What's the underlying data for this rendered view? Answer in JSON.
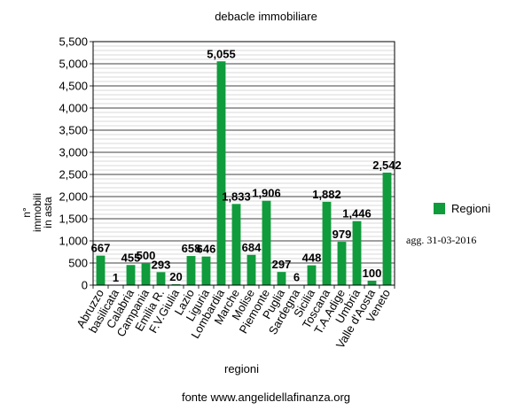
{
  "chart_data": {
    "type": "bar",
    "title": "debacle immobiliare",
    "xlabel": "regioni",
    "ylabel_lines": [
      "n°",
      "immobili",
      "in asta"
    ],
    "categories": [
      "Abruzzo",
      "basilicata",
      "Calabria",
      "Campania",
      "Emilia R.",
      "F.V.Giulia",
      "Lazio",
      "Liguria",
      "Lombardia",
      "Marche",
      "Molise",
      "Piemonte",
      "Puglia",
      "Sardegna",
      "Sicilia",
      "Toscana",
      "T.A.Adige",
      "Umbria",
      "Valle d'Aosta",
      "Veneto"
    ],
    "series": [
      {
        "name": "Regioni",
        "values": [
          667,
          1,
          455,
          500,
          293,
          20,
          658,
          646,
          5055,
          1833,
          684,
          1906,
          297,
          6,
          448,
          1882,
          979,
          1446,
          100,
          2542
        ],
        "labels": [
          "667",
          "1",
          "455",
          "500",
          "293",
          "20",
          "658",
          "646",
          "5,055",
          "1,833",
          "684",
          "1,906",
          "297",
          "6",
          "448",
          "1,882",
          "979",
          "1,446",
          "100",
          "2,542"
        ]
      }
    ],
    "ylim": [
      0,
      5500
    ],
    "yticks": [
      0,
      500,
      1000,
      1500,
      2000,
      2500,
      3000,
      3500,
      4000,
      4500,
      5000,
      5500
    ],
    "ytick_labels": [
      "0",
      "500",
      "1,000",
      "1,500",
      "2,000",
      "2,500",
      "3,000",
      "3,500",
      "4,000",
      "4,500",
      "5,000",
      "5,500"
    ],
    "grid": true,
    "legend": "right",
    "bar_color": "#109b3c"
  },
  "annotation": "agg. 31-03-2016",
  "source": "fonte www.angelidellafinanza.org"
}
